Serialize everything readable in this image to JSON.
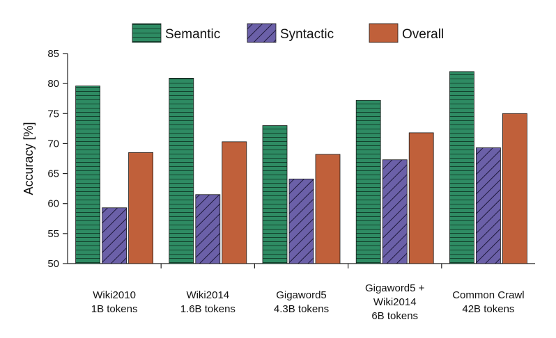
{
  "chart_data": {
    "type": "bar",
    "title": "",
    "xlabel": "",
    "ylabel": "Accuracy [%]",
    "ylim": [
      50,
      85
    ],
    "yticks": [
      50,
      55,
      60,
      65,
      70,
      75,
      80,
      85
    ],
    "grid": false,
    "legend_position": "top",
    "categories": [
      [
        "Wiki2010",
        "1B tokens"
      ],
      [
        "Wiki2014",
        "1.6B tokens"
      ],
      [
        "Gigaword5",
        "4.3B tokens"
      ],
      [
        "Gigaword5 +",
        "Wiki2014",
        "6B tokens"
      ],
      [
        "Common Crawl",
        "42B tokens"
      ]
    ],
    "series": [
      {
        "name": "Semantic",
        "color": "#2e8b63",
        "pattern": "horizontal-lines",
        "values": [
          79.6,
          80.9,
          73.0,
          77.2,
          82.0
        ]
      },
      {
        "name": "Syntactic",
        "color": "#6b60a8",
        "pattern": "diagonal-hatch",
        "values": [
          59.3,
          61.5,
          64.1,
          67.3,
          69.3
        ]
      },
      {
        "name": "Overall",
        "color": "#c0603a",
        "pattern": "solid",
        "values": [
          68.5,
          70.3,
          68.2,
          71.8,
          75.0
        ]
      }
    ]
  }
}
